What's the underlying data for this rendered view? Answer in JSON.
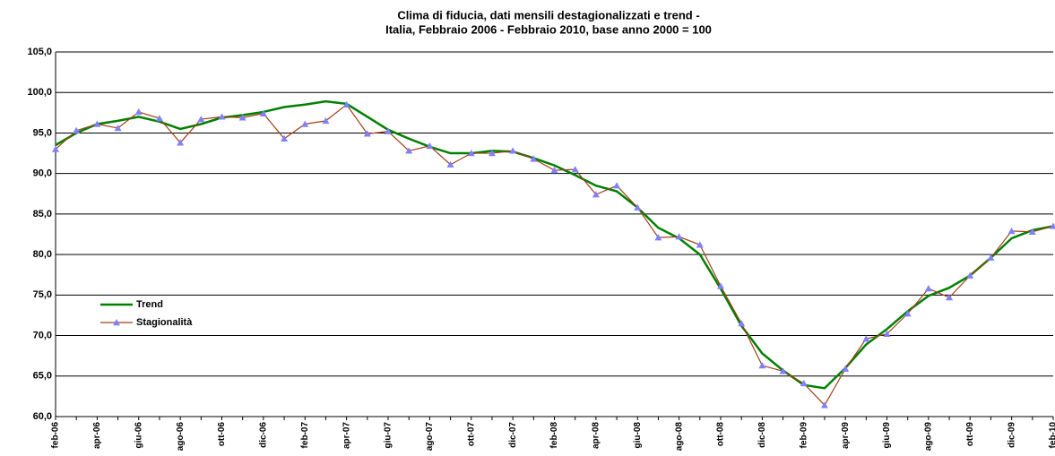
{
  "chart_data": {
    "type": "line",
    "title": "Clima di fiducia, dati mensili destagionalizzati e trend -",
    "subtitle": "Italia, Febbraio 2006 - Febbraio 2010, base anno 2000 = 100",
    "categories": [
      "feb-06",
      null,
      "apr-06",
      null,
      "giu-06",
      null,
      "ago-06",
      null,
      "ott-06",
      null,
      "dic-06",
      null,
      "feb-07",
      null,
      "apr-07",
      null,
      "giu-07",
      null,
      "ago-07",
      null,
      "ott-07",
      null,
      "dic-07",
      null,
      "feb-08",
      null,
      "apr-08",
      null,
      "giu-08",
      null,
      "ago-08",
      null,
      "ott-08",
      null,
      "dic-08",
      null,
      "feb-09",
      null,
      "apr-09",
      null,
      "giu-09",
      null,
      "ago-09",
      null,
      "ott-09",
      null,
      "dic-09",
      null,
      "feb-10"
    ],
    "series": [
      {
        "name": "Trend",
        "color": "#008000",
        "marker": "none",
        "values": [
          93.5,
          95.0,
          96.1,
          96.5,
          97.0,
          96.4,
          95.5,
          96.1,
          96.9,
          97.2,
          97.6,
          98.2,
          98.5,
          98.9,
          98.6,
          97.0,
          95.4,
          94.3,
          93.3,
          92.5,
          92.5,
          92.8,
          92.7,
          91.9,
          91.0,
          89.8,
          88.5,
          87.8,
          85.8,
          83.3,
          82.0,
          80.0,
          75.8,
          71.2,
          67.8,
          65.7,
          63.9,
          63.5,
          66.0,
          68.9,
          70.8,
          73.0,
          74.9,
          75.9,
          77.4,
          79.6,
          82.0,
          83.0,
          83.5
        ]
      },
      {
        "name": "Stagionalità",
        "color": "#a0401a",
        "marker": "triangle",
        "marker_color": "#8080ff",
        "values": [
          93.0,
          95.3,
          96.1,
          95.6,
          97.6,
          96.8,
          93.8,
          96.7,
          97.0,
          96.9,
          97.4,
          94.3,
          96.1,
          96.5,
          98.5,
          94.9,
          95.2,
          92.8,
          93.4,
          91.1,
          92.5,
          92.5,
          92.8,
          91.8,
          90.4,
          90.5,
          87.4,
          88.5,
          85.8,
          82.1,
          82.2,
          81.2,
          76.1,
          71.5,
          66.3,
          65.6,
          64.1,
          61.4,
          65.9,
          69.6,
          70.2,
          72.7,
          75.8,
          74.7,
          77.4,
          79.6,
          82.9,
          82.8,
          83.5
        ]
      }
    ],
    "ylim": [
      60,
      105
    ],
    "yticks": [
      {
        "value": 60,
        "label": "60,0"
      },
      {
        "value": 65,
        "label": "65,0"
      },
      {
        "value": 70,
        "label": "70,0"
      },
      {
        "value": 75,
        "label": "75,0"
      },
      {
        "value": 80,
        "label": "80,0"
      },
      {
        "value": 85,
        "label": "85,0"
      },
      {
        "value": 90,
        "label": "90,0"
      },
      {
        "value": 95,
        "label": "95,0"
      },
      {
        "value": 100,
        "label": "100,0"
      },
      {
        "value": 105,
        "label": "105,0"
      }
    ],
    "grid": true,
    "legend": "center-left"
  }
}
